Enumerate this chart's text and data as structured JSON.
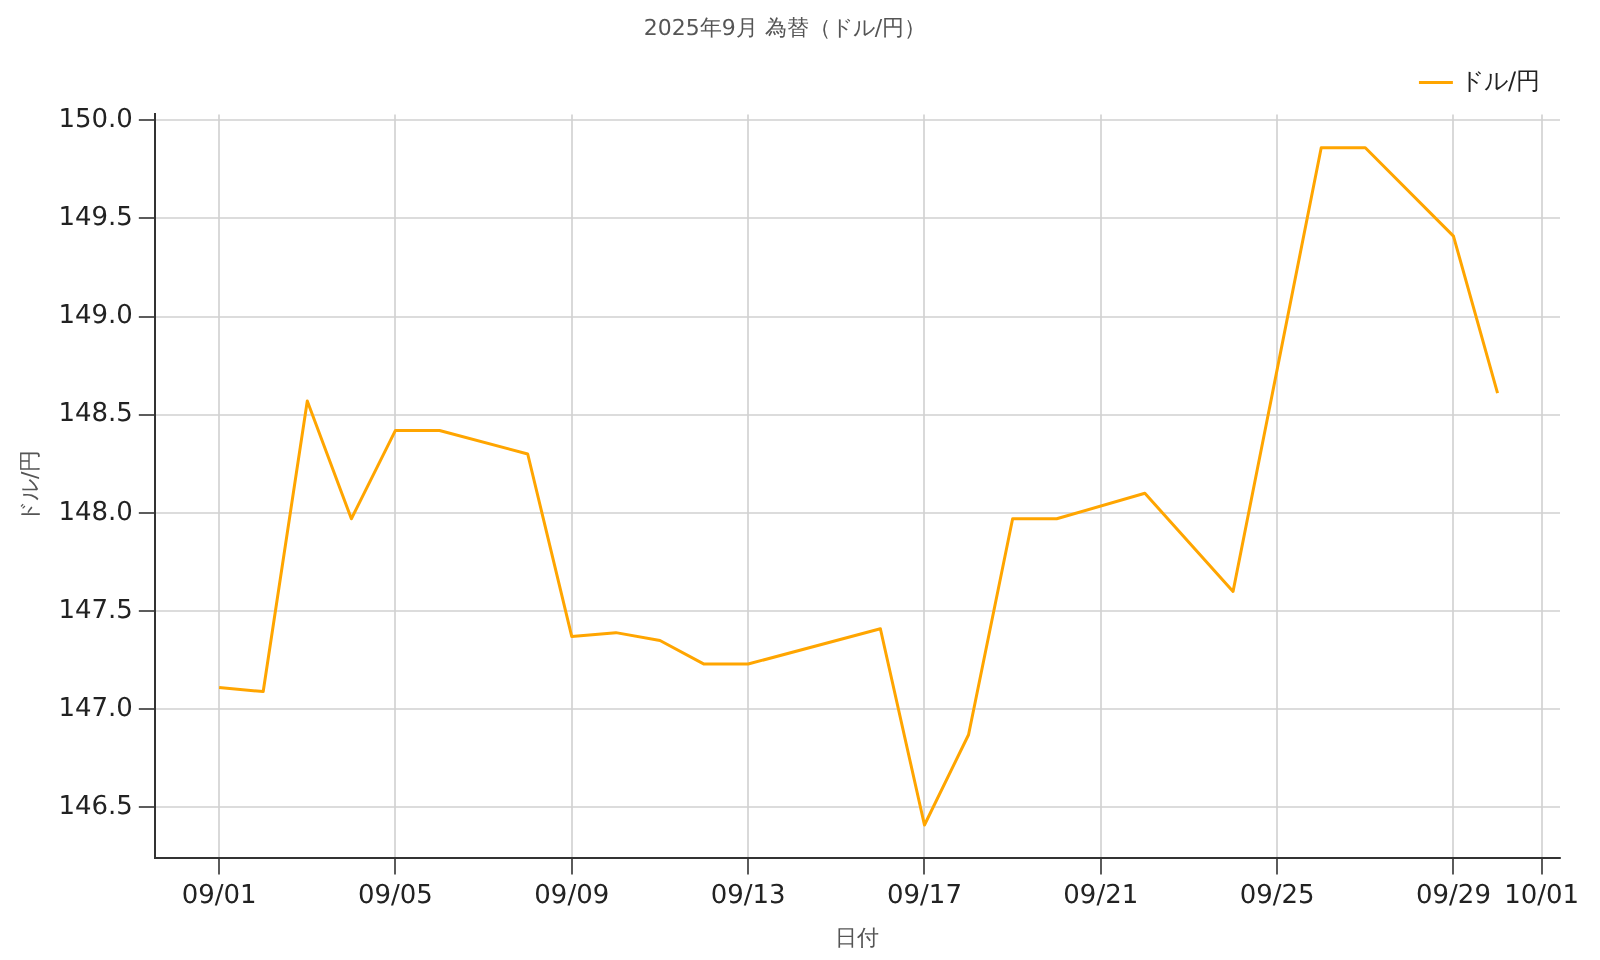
{
  "chart_data": {
    "type": "line",
    "title": "2025年9月 為替（ドル/円）",
    "xlabel": "日付",
    "ylabel": "ドル/円",
    "x": [
      "2025-09-01",
      "2025-09-02",
      "2025-09-03",
      "2025-09-04",
      "2025-09-05",
      "2025-09-06",
      "2025-09-08",
      "2025-09-09",
      "2025-09-10",
      "2025-09-11",
      "2025-09-12",
      "2025-09-13",
      "2025-09-16",
      "2025-09-17",
      "2025-09-18",
      "2025-09-19",
      "2025-09-20",
      "2025-09-22",
      "2025-09-24",
      "2025-09-26",
      "2025-09-27",
      "2025-09-29",
      "2025-09-30"
    ],
    "series": [
      {
        "name": "ドル/円",
        "color": "#ffa500",
        "values": [
          147.11,
          147.09,
          148.57,
          147.97,
          148.42,
          148.42,
          148.3,
          147.37,
          147.39,
          147.35,
          147.23,
          147.23,
          147.41,
          146.41,
          146.87,
          147.97,
          147.97,
          148.1,
          147.6,
          149.86,
          149.86,
          149.41,
          148.61
        ]
      }
    ],
    "xlim": [
      "2025-08-30T13:00",
      "2025-10-01T10:00"
    ],
    "xticks": [
      {
        "value": "2025-09-01",
        "label": "09/01"
      },
      {
        "value": "2025-09-05",
        "label": "09/05"
      },
      {
        "value": "2025-09-09",
        "label": "09/09"
      },
      {
        "value": "2025-09-13",
        "label": "09/13"
      },
      {
        "value": "2025-09-17",
        "label": "09/17"
      },
      {
        "value": "2025-09-21",
        "label": "09/21"
      },
      {
        "value": "2025-09-25",
        "label": "09/25"
      },
      {
        "value": "2025-09-29",
        "label": "09/29"
      },
      {
        "value": "2025-10-01",
        "label": "10/01"
      }
    ],
    "ylim": [
      146.24,
      150.03
    ],
    "yticks": [
      {
        "value": 146.5,
        "label": "146.5"
      },
      {
        "value": 147,
        "label": "147.0"
      },
      {
        "value": 147.5,
        "label": "147.5"
      },
      {
        "value": 148,
        "label": "148.0"
      },
      {
        "value": 148.5,
        "label": "148.5"
      },
      {
        "value": 149,
        "label": "149.0"
      },
      {
        "value": 149.5,
        "label": "149.5"
      },
      {
        "value": 150,
        "label": "150.0"
      }
    ],
    "grid": true,
    "legend": "top right",
    "marker": "none",
    "line_style": "solid"
  }
}
